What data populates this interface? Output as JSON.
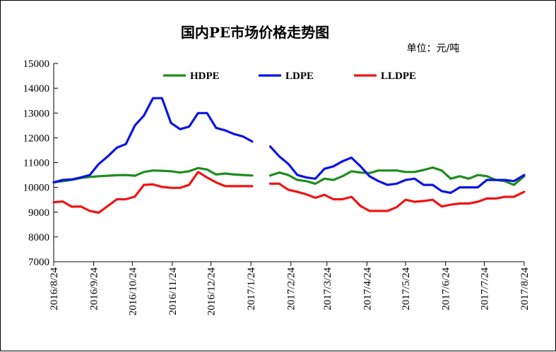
{
  "chart_data": {
    "type": "line",
    "title": "国内PE市场价格走势图",
    "unit_label": "单位：元/吨",
    "ylim": [
      7000,
      15000
    ],
    "yticks": [
      7000,
      8000,
      9000,
      10000,
      11000,
      12000,
      13000,
      14000,
      15000
    ],
    "xlim": [
      "2016/8/24",
      "2017/8/24"
    ],
    "xticks": [
      "2016/8/24",
      "2016/9/24",
      "2016/10/24",
      "2016/11/24",
      "2016/12/24",
      "2017/1/24",
      "2017/2/24",
      "2017/3/24",
      "2017/4/24",
      "2017/5/24",
      "2017/6/24",
      "2017/7/24",
      "2017/8/24"
    ],
    "legend_position": "top",
    "grid": false,
    "series": [
      {
        "name": "HDPE",
        "color": "#1e8c1e",
        "segments": [
          {
            "x": [
              "2016/8/24",
              "2016/8/31",
              "2016/9/7",
              "2016/9/14",
              "2016/9/21",
              "2016/9/28",
              "2016/10/5",
              "2016/10/12",
              "2016/10/19",
              "2016/10/26",
              "2016/11/2",
              "2016/11/9",
              "2016/11/16",
              "2016/11/23",
              "2016/11/30",
              "2016/12/7",
              "2016/12/14",
              "2016/12/21",
              "2016/12/28",
              "2017/1/4",
              "2017/1/11",
              "2017/1/18",
              "2017/1/25"
            ],
            "y": [
              10200,
              10250,
              10300,
              10380,
              10420,
              10450,
              10470,
              10490,
              10500,
              10470,
              10620,
              10680,
              10670,
              10650,
              10600,
              10650,
              10780,
              10720,
              10520,
              10560,
              10520,
              10500,
              10480
            ]
          },
          {
            "x": [
              "2017/2/8",
              "2017/2/15",
              "2017/2/22",
              "2017/3/1",
              "2017/3/8",
              "2017/3/15",
              "2017/3/22",
              "2017/3/29",
              "2017/4/5",
              "2017/4/12",
              "2017/4/19",
              "2017/4/26",
              "2017/5/3",
              "2017/5/10",
              "2017/5/17",
              "2017/5/24",
              "2017/5/31",
              "2017/6/7",
              "2017/6/14",
              "2017/6/21",
              "2017/6/28",
              "2017/7/5",
              "2017/7/12",
              "2017/7/19",
              "2017/7/26",
              "2017/8/2",
              "2017/8/9",
              "2017/8/16",
              "2017/8/24"
            ],
            "y": [
              10480,
              10600,
              10500,
              10300,
              10250,
              10150,
              10350,
              10300,
              10450,
              10650,
              10600,
              10580,
              10680,
              10680,
              10680,
              10620,
              10620,
              10700,
              10800,
              10680,
              10350,
              10450,
              10350,
              10500,
              10450,
              10300,
              10250,
              10100,
              10450
            ]
          }
        ]
      },
      {
        "name": "LDPE",
        "color": "#0a14e6",
        "segments": [
          {
            "x": [
              "2016/8/24",
              "2016/8/31",
              "2016/9/7",
              "2016/9/14",
              "2016/9/21",
              "2016/9/28",
              "2016/10/5",
              "2016/10/12",
              "2016/10/19",
              "2016/10/26",
              "2016/11/2",
              "2016/11/9",
              "2016/11/16",
              "2016/11/23",
              "2016/11/30",
              "2016/12/7",
              "2016/12/14",
              "2016/12/21",
              "2016/12/28",
              "2017/1/4",
              "2017/1/11",
              "2017/1/18",
              "2017/1/25"
            ],
            "y": [
              10200,
              10300,
              10320,
              10400,
              10500,
              10950,
              11250,
              11600,
              11750,
              12500,
              12900,
              13600,
              13600,
              12600,
              12350,
              12450,
              13000,
              13000,
              12400,
              12300,
              12150,
              12050,
              11850
            ]
          },
          {
            "x": [
              "2017/2/8",
              "2017/2/15",
              "2017/2/22",
              "2017/3/1",
              "2017/3/8",
              "2017/3/15",
              "2017/3/22",
              "2017/3/29",
              "2017/4/5",
              "2017/4/12",
              "2017/4/19",
              "2017/4/26",
              "2017/5/3",
              "2017/5/10",
              "2017/5/17",
              "2017/5/24",
              "2017/5/31",
              "2017/6/7",
              "2017/6/14",
              "2017/6/21",
              "2017/6/28",
              "2017/7/5",
              "2017/7/12",
              "2017/7/19",
              "2017/7/26",
              "2017/8/2",
              "2017/8/9",
              "2017/8/16",
              "2017/8/24"
            ],
            "y": [
              11650,
              11250,
              10950,
              10500,
              10400,
              10350,
              10750,
              10850,
              11050,
              11200,
              10850,
              10450,
              10250,
              10100,
              10150,
              10300,
              10350,
              10100,
              10100,
              9850,
              9780,
              10000,
              10000,
              10000,
              10300,
              10300,
              10300,
              10250,
              10500
            ]
          }
        ]
      },
      {
        "name": "LLDPE",
        "color": "#f01414",
        "segments": [
          {
            "x": [
              "2016/8/24",
              "2016/8/31",
              "2016/9/7",
              "2016/9/14",
              "2016/9/21",
              "2016/9/28",
              "2016/10/5",
              "2016/10/12",
              "2016/10/19",
              "2016/10/26",
              "2016/11/2",
              "2016/11/9",
              "2016/11/16",
              "2016/11/23",
              "2016/11/30",
              "2016/12/7",
              "2016/12/14",
              "2016/12/21",
              "2016/12/28",
              "2017/1/4",
              "2017/1/11",
              "2017/1/18",
              "2017/1/25"
            ],
            "y": [
              9400,
              9430,
              9220,
              9230,
              9050,
              8980,
              9250,
              9520,
              9520,
              9630,
              10100,
              10120,
              10020,
              9980,
              9980,
              10100,
              10620,
              10400,
              10200,
              10050,
              10050,
              10050,
              10050
            ]
          },
          {
            "x": [
              "2017/2/8",
              "2017/2/15",
              "2017/2/22",
              "2017/3/1",
              "2017/3/8",
              "2017/3/15",
              "2017/3/22",
              "2017/3/29",
              "2017/4/5",
              "2017/4/12",
              "2017/4/19",
              "2017/4/26",
              "2017/5/3",
              "2017/5/10",
              "2017/5/17",
              "2017/5/24",
              "2017/5/31",
              "2017/6/7",
              "2017/6/14",
              "2017/6/21",
              "2017/6/28",
              "2017/7/5",
              "2017/7/12",
              "2017/7/19",
              "2017/7/26",
              "2017/8/2",
              "2017/8/9",
              "2017/8/16",
              "2017/8/24"
            ],
            "y": [
              10150,
              10150,
              9900,
              9820,
              9720,
              9580,
              9700,
              9520,
              9520,
              9620,
              9250,
              9050,
              9050,
              9050,
              9200,
              9500,
              9420,
              9450,
              9500,
              9230,
              9300,
              9350,
              9350,
              9420,
              9550,
              9550,
              9620,
              9620,
              9820
            ]
          }
        ]
      }
    ]
  }
}
